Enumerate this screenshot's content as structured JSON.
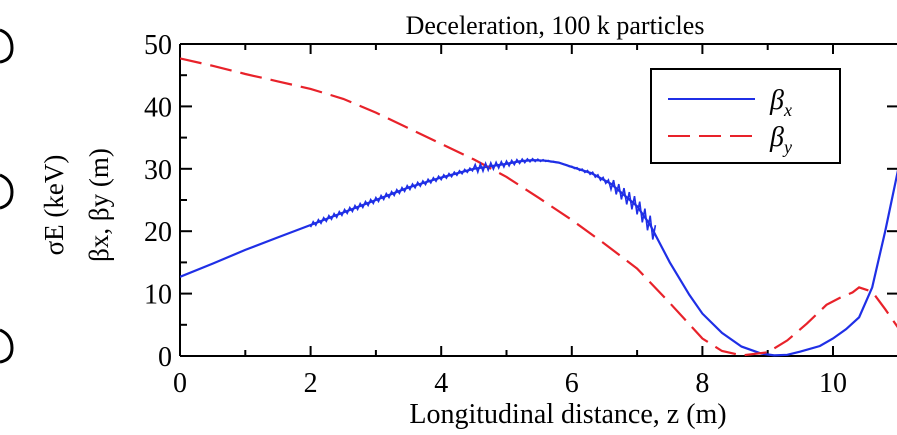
{
  "chart_data": {
    "type": "line",
    "title": "Deceleration, 100 k particles",
    "xlabel": "Longitudinal distance, z (m)",
    "ylabel_line1": "σE (keV)",
    "ylabel_line2": "βx, βy (m)",
    "xlim": [
      0,
      11
    ],
    "ylim": [
      0,
      50
    ],
    "xticks": [
      0,
      2,
      4,
      6,
      8,
      10
    ],
    "xtick_labels": [
      "0",
      "2",
      "4",
      "6",
      "8",
      "10"
    ],
    "yticks": [
      0,
      10,
      20,
      30,
      40,
      50
    ],
    "ytick_labels": [
      "0",
      "10",
      "20",
      "30",
      "40",
      "50"
    ],
    "grid": false,
    "legend_position": "top-right",
    "series": [
      {
        "name": "βx",
        "style": "solid",
        "color": "#1f2fe6",
        "x": [
          0,
          0.5,
          1,
          1.5,
          2,
          2.5,
          3,
          3.5,
          4,
          4.5,
          5,
          5.2,
          5.4,
          5.6,
          5.8,
          6,
          6.3,
          6.6,
          7,
          7.2,
          7.5,
          7.8,
          8,
          8.3,
          8.6,
          8.9,
          9.1,
          9.3,
          9.5,
          9.8,
          10,
          10.2,
          10.4,
          10.6,
          10.8,
          11
        ],
        "y": [
          12.7,
          14.8,
          17,
          19,
          21,
          23,
          25,
          27,
          28.6,
          30,
          30.8,
          31.2,
          31.4,
          31.3,
          31,
          30.3,
          29.3,
          27.6,
          24,
          21,
          15,
          9.8,
          6.8,
          3.7,
          1.5,
          0.4,
          0.1,
          0.2,
          0.7,
          1.6,
          2.8,
          4.3,
          6.2,
          11,
          20,
          30
        ]
      },
      {
        "name": "βy",
        "style": "dashed",
        "color": "#e8222a",
        "x": [
          0,
          0.5,
          1,
          1.5,
          2,
          2.5,
          3,
          3.5,
          4,
          4.5,
          5,
          5.5,
          6,
          6.5,
          7,
          7.5,
          8,
          8.3,
          8.6,
          9,
          9.3,
          9.6,
          9.9,
          10.1,
          10.3,
          10.4,
          10.6,
          10.8,
          11
        ],
        "y": [
          47.7,
          46.5,
          45.2,
          44,
          42.8,
          41.2,
          39,
          36.5,
          34,
          31.5,
          28.7,
          25.3,
          21.8,
          18,
          14,
          8.5,
          2.8,
          0.8,
          0.1,
          0.6,
          2.5,
          5.2,
          8.2,
          9.3,
          10.2,
          11,
          10.3,
          7.5,
          4.5
        ]
      }
    ],
    "legend": {
      "entries": [
        "βx",
        "βy"
      ]
    }
  }
}
